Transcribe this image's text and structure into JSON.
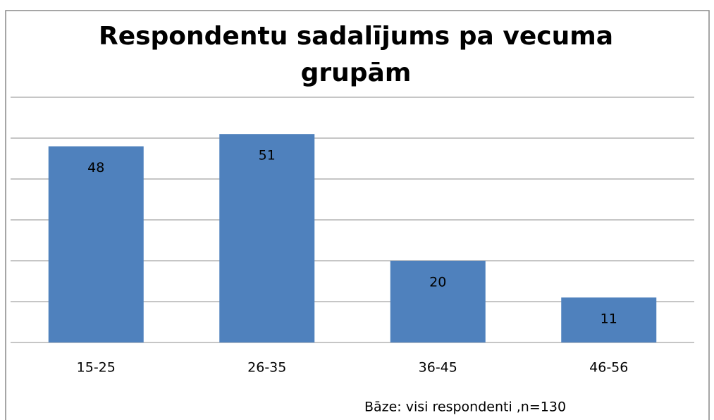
{
  "chart_data": {
    "type": "bar",
    "title": "Respondentu sadalījums pa vecuma grupām",
    "categories": [
      "15-25",
      "26-35",
      "36-45",
      "46-56"
    ],
    "values": [
      48,
      51,
      20,
      11
    ],
    "color": "#4f81bd",
    "ylim": [
      0,
      60
    ],
    "yticks": [
      0,
      10,
      20,
      30,
      40,
      50,
      60
    ],
    "grid": true,
    "annotation": "Bāze: visi respondenti ,n=130"
  }
}
